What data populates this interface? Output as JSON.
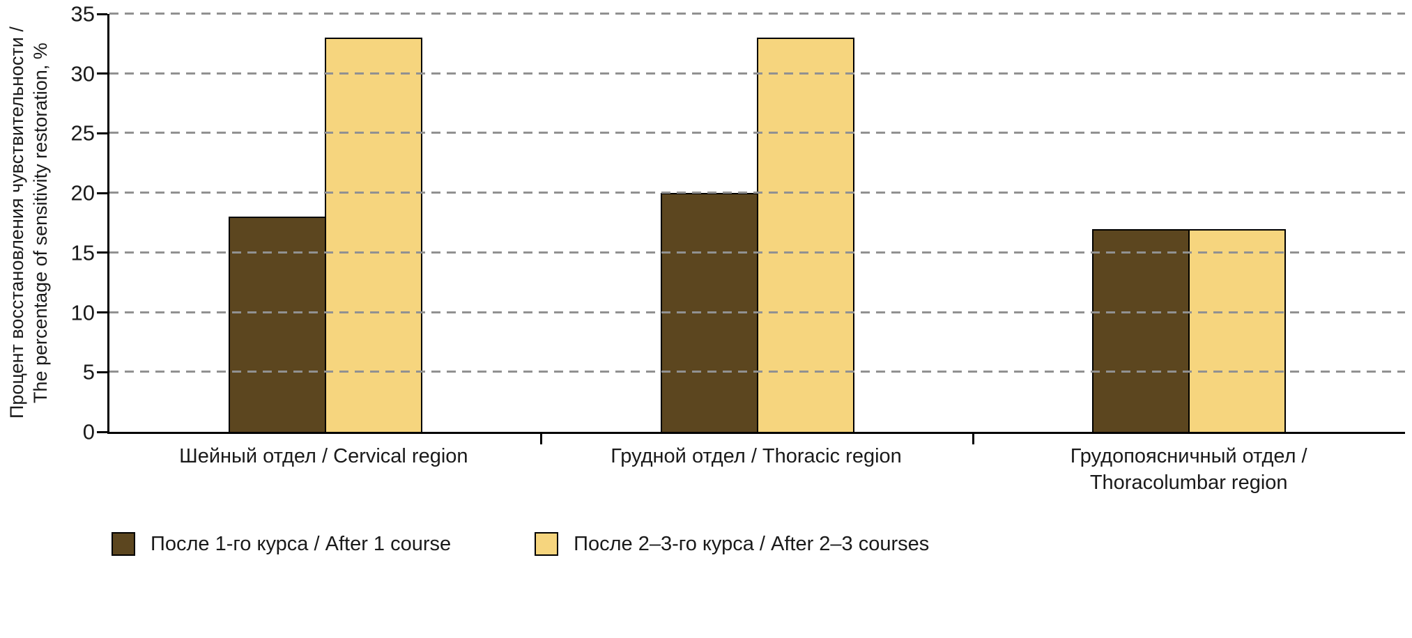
{
  "chart_data": {
    "type": "bar",
    "title": "",
    "categories": [
      "Шейный отдел / Cervical region",
      "Грудной отдел / Thoracic region",
      "Грудопоясничный отдел /\nThoracolumbar region"
    ],
    "series": [
      {
        "name": "После 1-го курса / After 1 course",
        "color": "#5c461f",
        "values": [
          18,
          20,
          17
        ]
      },
      {
        "name": "После 2–3-го курса / After 2–3 courses",
        "color": "#f6d57e",
        "values": [
          33,
          33,
          17
        ]
      }
    ],
    "xlabel": "",
    "ylabel": "Процент восстановления чувствительности /\nThe percentage of sensitivity restoration, %",
    "ylim": [
      0,
      35
    ],
    "ytick_step": 5,
    "yticks": [
      0,
      5,
      10,
      15,
      20,
      25,
      30,
      35
    ],
    "grid": "horizontal-dashed",
    "gridline_color": "#919191",
    "axis_color": "#000000",
    "bar_border_color": "#000000",
    "legend_position": "bottom-left"
  }
}
